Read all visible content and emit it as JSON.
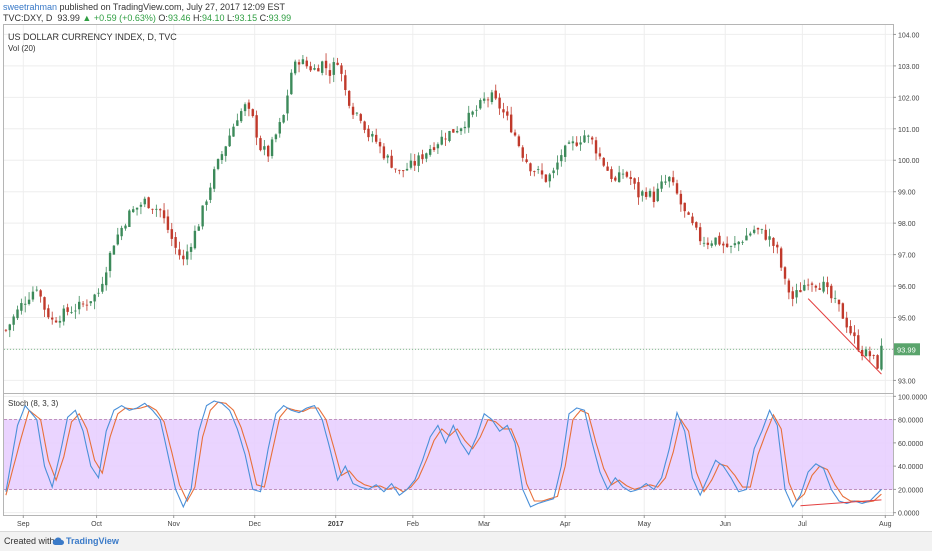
{
  "header": {
    "author": "sweetrahman",
    "published_text": "published on TradingView.com, July 27, 2017 12:09 EST",
    "symbol": "TVC:DXY, D",
    "last": "93.99",
    "change_arrow": "▲",
    "change": "+0.59 (+0.63%)",
    "o_label": "O:",
    "o_value": "93.46",
    "h_label": "H:",
    "h_value": "94.10",
    "l_label": "L:",
    "l_value": "93.15",
    "c_label": "C:",
    "c_value": "93.99"
  },
  "footer": {
    "created_with": "Created with",
    "brand": "TradingView",
    "logo_icon": "tradingview-cloud-icon"
  },
  "colors": {
    "up": "#3c8a5a",
    "down": "#c0392b",
    "stoch_k": "#4a90d9",
    "stoch_d": "#e8703a",
    "band": "#e6ccff",
    "price_label": "#5aa46c",
    "trend": "#e34040"
  },
  "chart_data": {
    "type": "candlestick",
    "title": "US DOLLAR CURRENCY INDEX, D, TVC",
    "volume_label": "Vol (20)",
    "last_price_label": "93.99",
    "y_axis": {
      "ylim": [
        92.6,
        104.3
      ],
      "ticks": [
        "104.00",
        "103.00",
        "102.00",
        "101.00",
        "100.00",
        "99.00",
        "98.00",
        "97.00",
        "96.00",
        "95.00",
        "94.00",
        "93.00"
      ]
    },
    "x_ticks": [
      "Sep",
      "Oct",
      "Nov",
      "Dec",
      "2017",
      "Feb",
      "Mar",
      "Apr",
      "May",
      "Jun",
      "Jul",
      "Aug"
    ],
    "x_tick_positions": [
      4.5,
      23.5,
      43.5,
      64.5,
      85.5,
      105.5,
      124,
      145,
      165.5,
      186.5,
      206.5,
      228
    ],
    "x_range": [
      -0.5,
      230
    ],
    "price_keypoints": [
      [
        0,
        94.6
      ],
      [
        4,
        95.4
      ],
      [
        8,
        96.0
      ],
      [
        10,
        95.3
      ],
      [
        12,
        94.9
      ],
      [
        16,
        95.2
      ],
      [
        20,
        95.4
      ],
      [
        24,
        95.8
      ],
      [
        28,
        97.4
      ],
      [
        32,
        98.3
      ],
      [
        36,
        98.7
      ],
      [
        40,
        98.4
      ],
      [
        44,
        97.2
      ],
      [
        46,
        96.8
      ],
      [
        50,
        98.0
      ],
      [
        54,
        99.6
      ],
      [
        58,
        100.8
      ],
      [
        60,
        101.4
      ],
      [
        62,
        101.7
      ],
      [
        64,
        101.3
      ],
      [
        66,
        100.4
      ],
      [
        68,
        100.2
      ],
      [
        70,
        100.8
      ],
      [
        72,
        101.4
      ],
      [
        74,
        102.8
      ],
      [
        76,
        103.2
      ],
      [
        78,
        103.0
      ],
      [
        80,
        102.9
      ],
      [
        82,
        103.1
      ],
      [
        84,
        102.8
      ],
      [
        86,
        103.2
      ],
      [
        88,
        102.2
      ],
      [
        90,
        101.6
      ],
      [
        92,
        101.4
      ],
      [
        94,
        100.8
      ],
      [
        96,
        100.6
      ],
      [
        98,
        100.2
      ],
      [
        100,
        99.9
      ],
      [
        102,
        99.6
      ],
      [
        106,
        99.9
      ],
      [
        110,
        100.4
      ],
      [
        114,
        100.8
      ],
      [
        118,
        101.1
      ],
      [
        122,
        101.6
      ],
      [
        124,
        101.9
      ],
      [
        126,
        102.0
      ],
      [
        128,
        101.7
      ],
      [
        130,
        101.3
      ],
      [
        132,
        100.8
      ],
      [
        134,
        100.2
      ],
      [
        136,
        99.8
      ],
      [
        138,
        99.6
      ],
      [
        140,
        99.4
      ],
      [
        142,
        99.6
      ],
      [
        144,
        100.2
      ],
      [
        146,
        100.4
      ],
      [
        148,
        100.6
      ],
      [
        150,
        100.8
      ],
      [
        152,
        100.6
      ],
      [
        154,
        100.1
      ],
      [
        156,
        99.7
      ],
      [
        158,
        99.3
      ],
      [
        160,
        99.6
      ],
      [
        162,
        99.4
      ],
      [
        164,
        98.9
      ],
      [
        166,
        99.0
      ],
      [
        168,
        98.8
      ],
      [
        170,
        99.2
      ],
      [
        172,
        99.4
      ],
      [
        174,
        98.9
      ],
      [
        176,
        98.3
      ],
      [
        178,
        97.9
      ],
      [
        180,
        97.5
      ],
      [
        182,
        97.4
      ],
      [
        184,
        97.5
      ],
      [
        186,
        97.3
      ],
      [
        188,
        97.2
      ],
      [
        190,
        97.4
      ],
      [
        192,
        97.6
      ],
      [
        194,
        97.8
      ],
      [
        196,
        97.7
      ],
      [
        198,
        97.5
      ],
      [
        200,
        97.1
      ],
      [
        202,
        96.1
      ],
      [
        204,
        95.6
      ],
      [
        206,
        95.9
      ],
      [
        208,
        96.2
      ],
      [
        210,
        96.1
      ],
      [
        212,
        96.0
      ],
      [
        214,
        95.6
      ],
      [
        216,
        95.3
      ],
      [
        218,
        94.8
      ],
      [
        220,
        94.3
      ],
      [
        222,
        93.9
      ],
      [
        224,
        93.8
      ],
      [
        226,
        93.5
      ],
      [
        227,
        93.99
      ]
    ],
    "trendline_price": [
      [
        208,
        95.6
      ],
      [
        227,
        93.2
      ]
    ],
    "stoch": {
      "label": "Stoch (8, 3, 3)",
      "ylim": [
        -2,
        102
      ],
      "ticks": [
        "100.0000",
        "80.0000",
        "60.0000",
        "40.0000",
        "20.0000",
        "0.0000"
      ],
      "band": [
        20,
        80
      ],
      "k_keypoints": [
        [
          0,
          18
        ],
        [
          3,
          75
        ],
        [
          5,
          92
        ],
        [
          8,
          80
        ],
        [
          10,
          40
        ],
        [
          12,
          22
        ],
        [
          14,
          50
        ],
        [
          16,
          82
        ],
        [
          18,
          88
        ],
        [
          20,
          70
        ],
        [
          22,
          40
        ],
        [
          24,
          30
        ],
        [
          26,
          70
        ],
        [
          28,
          88
        ],
        [
          30,
          92
        ],
        [
          32,
          88
        ],
        [
          34,
          90
        ],
        [
          36,
          94
        ],
        [
          38,
          88
        ],
        [
          40,
          80
        ],
        [
          42,
          50
        ],
        [
          44,
          20
        ],
        [
          46,
          5
        ],
        [
          48,
          20
        ],
        [
          50,
          70
        ],
        [
          52,
          92
        ],
        [
          54,
          96
        ],
        [
          56,
          94
        ],
        [
          58,
          88
        ],
        [
          60,
          72
        ],
        [
          62,
          50
        ],
        [
          64,
          20
        ],
        [
          66,
          18
        ],
        [
          68,
          55
        ],
        [
          70,
          85
        ],
        [
          72,
          92
        ],
        [
          74,
          88
        ],
        [
          76,
          86
        ],
        [
          78,
          90
        ],
        [
          80,
          92
        ],
        [
          82,
          80
        ],
        [
          84,
          55
        ],
        [
          86,
          28
        ],
        [
          88,
          40
        ],
        [
          90,
          25
        ],
        [
          92,
          22
        ],
        [
          94,
          20
        ],
        [
          96,
          24
        ],
        [
          98,
          18
        ],
        [
          100,
          25
        ],
        [
          102,
          15
        ],
        [
          104,
          20
        ],
        [
          106,
          28
        ],
        [
          108,
          45
        ],
        [
          110,
          65
        ],
        [
          112,
          75
        ],
        [
          114,
          60
        ],
        [
          116,
          75
        ],
        [
          118,
          60
        ],
        [
          120,
          50
        ],
        [
          122,
          65
        ],
        [
          124,
          85
        ],
        [
          126,
          80
        ],
        [
          128,
          70
        ],
        [
          130,
          75
        ],
        [
          132,
          60
        ],
        [
          134,
          20
        ],
        [
          136,
          5
        ],
        [
          138,
          8
        ],
        [
          140,
          10
        ],
        [
          142,
          12
        ],
        [
          144,
          40
        ],
        [
          146,
          85
        ],
        [
          148,
          90
        ],
        [
          150,
          88
        ],
        [
          152,
          60
        ],
        [
          154,
          35
        ],
        [
          156,
          20
        ],
        [
          158,
          30
        ],
        [
          160,
          22
        ],
        [
          162,
          18
        ],
        [
          164,
          20
        ],
        [
          166,
          25
        ],
        [
          168,
          20
        ],
        [
          170,
          30
        ],
        [
          172,
          55
        ],
        [
          174,
          86
        ],
        [
          176,
          70
        ],
        [
          178,
          30
        ],
        [
          180,
          15
        ],
        [
          182,
          30
        ],
        [
          184,
          45
        ],
        [
          186,
          40
        ],
        [
          188,
          30
        ],
        [
          190,
          18
        ],
        [
          192,
          20
        ],
        [
          194,
          55
        ],
        [
          196,
          70
        ],
        [
          198,
          88
        ],
        [
          200,
          75
        ],
        [
          202,
          20
        ],
        [
          204,
          5
        ],
        [
          206,
          15
        ],
        [
          208,
          35
        ],
        [
          210,
          42
        ],
        [
          212,
          38
        ],
        [
          214,
          20
        ],
        [
          216,
          10
        ],
        [
          218,
          8
        ],
        [
          220,
          10
        ],
        [
          222,
          8
        ],
        [
          224,
          10
        ],
        [
          227,
          20
        ]
      ],
      "d_keypoints": [
        [
          0,
          15
        ],
        [
          4,
          65
        ],
        [
          6,
          88
        ],
        [
          9,
          80
        ],
        [
          11,
          45
        ],
        [
          13,
          28
        ],
        [
          15,
          48
        ],
        [
          17,
          78
        ],
        [
          19,
          85
        ],
        [
          21,
          72
        ],
        [
          23,
          45
        ],
        [
          25,
          34
        ],
        [
          27,
          65
        ],
        [
          29,
          85
        ],
        [
          31,
          90
        ],
        [
          33,
          89
        ],
        [
          35,
          90
        ],
        [
          37,
          92
        ],
        [
          39,
          88
        ],
        [
          41,
          78
        ],
        [
          43,
          52
        ],
        [
          45,
          24
        ],
        [
          47,
          10
        ],
        [
          49,
          22
        ],
        [
          51,
          65
        ],
        [
          53,
          88
        ],
        [
          55,
          95
        ],
        [
          57,
          94
        ],
        [
          59,
          88
        ],
        [
          61,
          73
        ],
        [
          63,
          52
        ],
        [
          65,
          24
        ],
        [
          67,
          22
        ],
        [
          69,
          52
        ],
        [
          71,
          82
        ],
        [
          73,
          90
        ],
        [
          75,
          88
        ],
        [
          77,
          87
        ],
        [
          79,
          90
        ],
        [
          81,
          90
        ],
        [
          83,
          80
        ],
        [
          85,
          56
        ],
        [
          87,
          32
        ],
        [
          89,
          36
        ],
        [
          91,
          28
        ],
        [
          93,
          24
        ],
        [
          95,
          22
        ],
        [
          97,
          23
        ],
        [
          99,
          20
        ],
        [
          101,
          22
        ],
        [
          103,
          18
        ],
        [
          105,
          22
        ],
        [
          107,
          30
        ],
        [
          109,
          45
        ],
        [
          111,
          62
        ],
        [
          113,
          72
        ],
        [
          115,
          66
        ],
        [
          117,
          72
        ],
        [
          119,
          62
        ],
        [
          121,
          55
        ],
        [
          123,
          65
        ],
        [
          125,
          80
        ],
        [
          127,
          78
        ],
        [
          129,
          72
        ],
        [
          131,
          72
        ],
        [
          133,
          56
        ],
        [
          135,
          25
        ],
        [
          137,
          10
        ],
        [
          139,
          10
        ],
        [
          141,
          12
        ],
        [
          143,
          14
        ],
        [
          145,
          40
        ],
        [
          147,
          80
        ],
        [
          149,
          88
        ],
        [
          151,
          85
        ],
        [
          153,
          60
        ],
        [
          155,
          38
        ],
        [
          157,
          24
        ],
        [
          159,
          28
        ],
        [
          161,
          23
        ],
        [
          163,
          20
        ],
        [
          165,
          22
        ],
        [
          167,
          24
        ],
        [
          169,
          22
        ],
        [
          171,
          30
        ],
        [
          173,
          52
        ],
        [
          175,
          80
        ],
        [
          177,
          70
        ],
        [
          179,
          35
        ],
        [
          181,
          18
        ],
        [
          183,
          28
        ],
        [
          185,
          42
        ],
        [
          187,
          40
        ],
        [
          189,
          32
        ],
        [
          191,
          22
        ],
        [
          193,
          22
        ],
        [
          195,
          50
        ],
        [
          197,
          68
        ],
        [
          199,
          84
        ],
        [
          201,
          72
        ],
        [
          203,
          26
        ],
        [
          205,
          10
        ],
        [
          207,
          16
        ],
        [
          209,
          32
        ],
        [
          211,
          40
        ],
        [
          213,
          37
        ],
        [
          215,
          24
        ],
        [
          217,
          14
        ],
        [
          219,
          10
        ],
        [
          221,
          10
        ],
        [
          223,
          9
        ],
        [
          225,
          10
        ],
        [
          227,
          16
        ]
      ],
      "trendline": [
        [
          206,
          6
        ],
        [
          227,
          11
        ]
      ]
    }
  }
}
